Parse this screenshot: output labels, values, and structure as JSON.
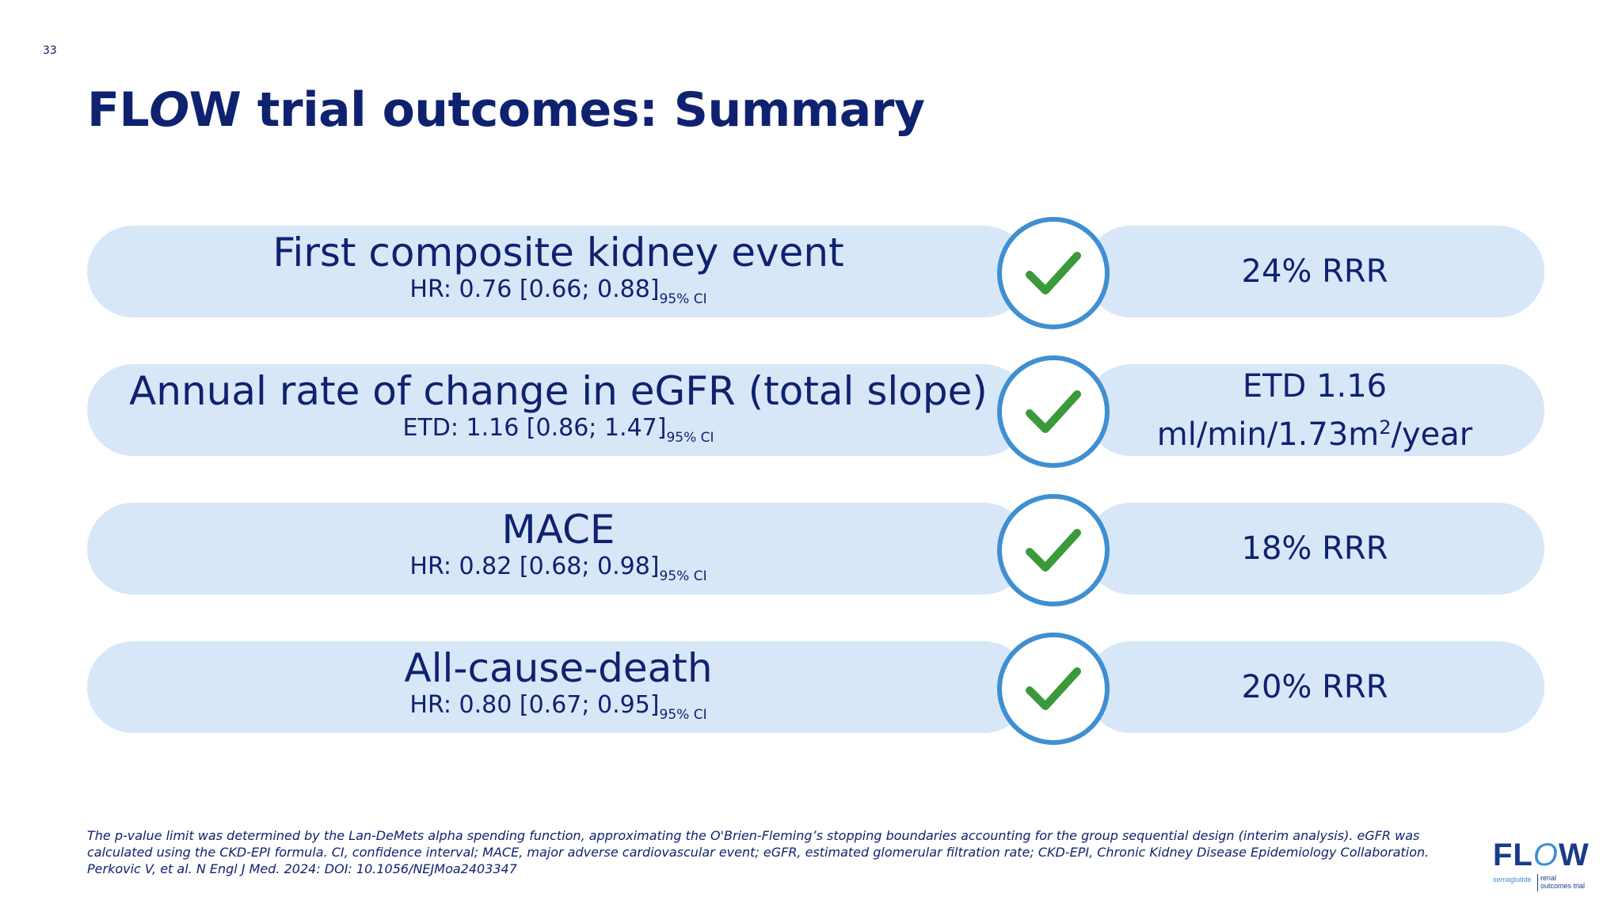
{
  "slide_number": "33",
  "title": {
    "part1": "FL",
    "part2": "O",
    "part3": "W trial outcomes: Summary"
  },
  "outcomes": [
    {
      "title": "First composite kidney event",
      "stat_label": "HR: 0.76 [0.66; 0.88]",
      "ci_label": "95% CI",
      "result_line1": "24% RRR",
      "result_line2": "",
      "result_sup": "",
      "result_suffix": ""
    },
    {
      "title": "Annual rate of change in eGFR (total slope)",
      "stat_label": "ETD: 1.16 [0.86; 1.47]",
      "ci_label": "95% CI",
      "result_line1": "ETD 1.16",
      "result_line2": "ml/min/1.73m",
      "result_sup": "2",
      "result_suffix": "/year"
    },
    {
      "title": "MACE",
      "stat_label": "HR: 0.82 [0.68; 0.98]",
      "ci_label": "95% CI",
      "result_line1": "18% RRR",
      "result_line2": "",
      "result_sup": "",
      "result_suffix": ""
    },
    {
      "title": "All-cause-death",
      "stat_label": "HR: 0.80 [0.67; 0.95]",
      "ci_label": "95% CI",
      "result_line1": "20% RRR",
      "result_line2": "",
      "result_sup": "",
      "result_suffix": ""
    }
  ],
  "check_icon": "checkmark-icon",
  "footnote": "The p-value limit was determined by the Lan-DeMets alpha spending function, approximating the O'Brien-Fleming’s stopping boundaries accounting for the group sequential design (interim analysis).  eGFR was calculated using the CKD-EPI formula. CI, confidence interval; MACE, major adverse cardiovascular event; eGFR, estimated glomerular filtration rate; CKD-EPI, Chronic Kidney Disease Epidemiology Collaboration. Perkovic V, et al. N Engl J Med. 2024: DOI: 10.1056/NEJMoa2403347",
  "logo": {
    "word_a": "FL",
    "word_o": "O",
    "word_b": "W",
    "left_sub": "semaglutide",
    "right_sub_1": "renal",
    "right_sub_2": "outcomes trial"
  },
  "colors": {
    "navy": "#0f2270",
    "pill": "#d8e7f7",
    "ring": "#3f8fd2",
    "check": "#3a9a3a"
  }
}
